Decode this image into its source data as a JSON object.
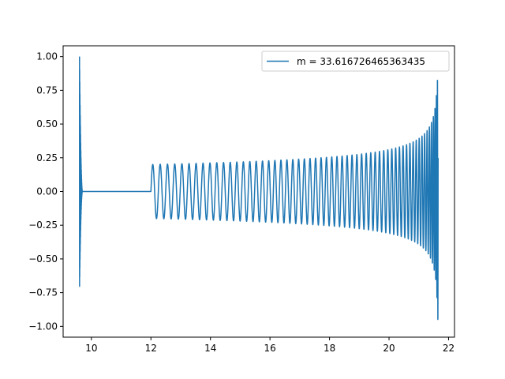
{
  "chart_data": {
    "type": "line",
    "title": "",
    "xlabel": "",
    "ylabel": "",
    "xlim": [
      9.05,
      22.2
    ],
    "ylim": [
      -1.08,
      1.08
    ],
    "x_ticks": [
      10,
      12,
      14,
      16,
      18,
      20,
      22
    ],
    "x_tick_labels": [
      "10",
      "12",
      "14",
      "16",
      "18",
      "20",
      "22"
    ],
    "y_ticks": [
      1.0,
      0.75,
      0.5,
      0.25,
      0.0,
      -0.25,
      -0.5,
      -0.75,
      -1.0
    ],
    "y_tick_labels": [
      "1.00",
      "0.75",
      "0.50",
      "0.25",
      "0.00",
      "−0.25",
      "−0.50",
      "−0.75",
      "−1.00"
    ],
    "grid": false,
    "legend_position": "top-right",
    "series": [
      {
        "name": "m = 33.616726465363435",
        "color": "#1f77b4",
        "segments": [
          {
            "kind": "burst",
            "x_start": 9.6,
            "x_end": 9.7,
            "peak_pos": 1.0,
            "peak_neg": -0.74
          },
          {
            "kind": "flat",
            "x_start": 9.7,
            "x_end": 12.0,
            "y": 0.0
          },
          {
            "kind": "chirp",
            "x_start": 12.0,
            "x_end": 21.65,
            "amp_start": 0.2,
            "amp_end": 0.85,
            "min_end": -0.97
          }
        ]
      }
    ]
  }
}
